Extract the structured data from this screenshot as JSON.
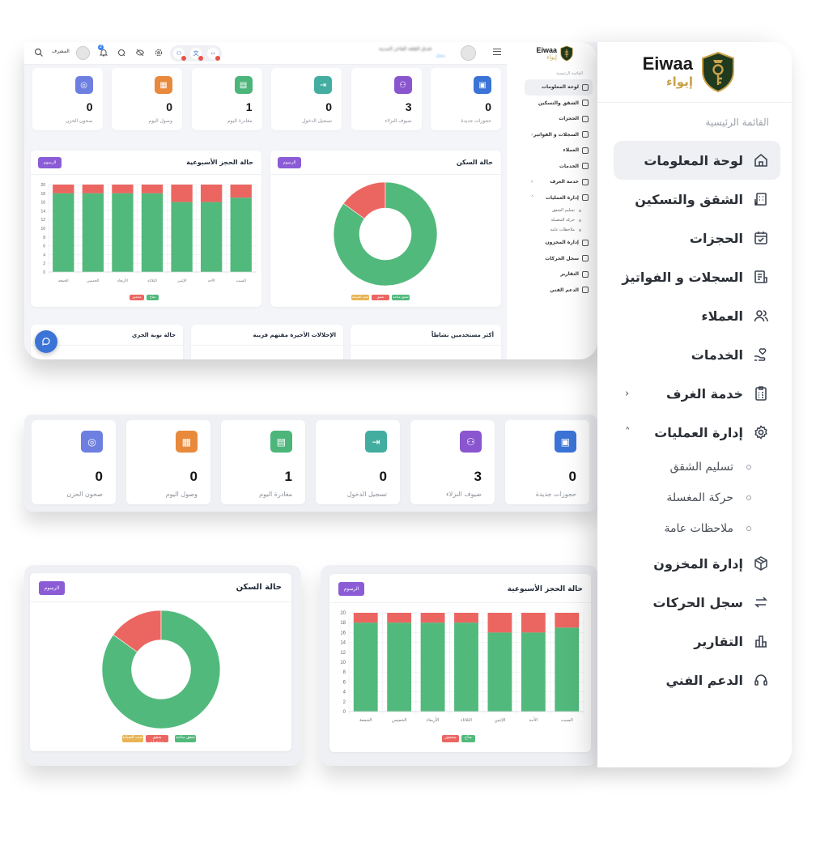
{
  "brand": {
    "name_en": "Eiwaa",
    "name_ar": "إيواء",
    "colors": {
      "shield": "#1f3a1f",
      "gold": "#c9a24a"
    }
  },
  "sidebar": {
    "section_title": "القائمة الرئيسية",
    "items": [
      {
        "label": "لوحة المعلومات",
        "icon": "home-icon",
        "active": true
      },
      {
        "label": "الشقق والتسكين",
        "icon": "building-icon"
      },
      {
        "label": "الحجزات",
        "icon": "calendar-check-icon"
      },
      {
        "label": "السجلات و الفواتير",
        "icon": "invoice-icon",
        "chevron": "‹"
      },
      {
        "label": "العملاء",
        "icon": "users-icon"
      },
      {
        "label": "الخدمات",
        "icon": "hand-heart-icon"
      },
      {
        "label": "خدمة الغرف",
        "icon": "clipboard-icon",
        "chevron": "‹"
      },
      {
        "label": "إدارة العمليات",
        "icon": "gear-icon",
        "chevron": "˄",
        "children": [
          "تسليم الشقق",
          "حركة المغسلة",
          "ملاحظات عامة"
        ]
      },
      {
        "label": "إدارة المخزون",
        "icon": "box-icon"
      },
      {
        "label": "سجل الحركات",
        "icon": "arrows-exchange-icon"
      },
      {
        "label": "التقارير",
        "icon": "bar-chart-icon"
      },
      {
        "label": "الدعم الفني",
        "icon": "headset-icon"
      }
    ]
  },
  "topbar": {
    "user_name": "المشرف",
    "hotel_title": "فندق القلعة الفاخر المدينة",
    "hotel_subtitle": "متصل",
    "notification_count": "2",
    "pill_icons": [
      "user-badge-icon",
      "translate-icon",
      "code-icon"
    ],
    "icons": [
      "search-icon",
      "refresh-icon",
      "eye-off-icon",
      "settings-icon",
      "bell-icon",
      "menu-icon"
    ]
  },
  "stats": [
    {
      "label": "حجوزات جديدة",
      "value": "0",
      "color": "#3b74d6",
      "icon": "calendar-plus-icon"
    },
    {
      "label": "ضيوف النزلاء",
      "value": "3",
      "color": "#8a56cf",
      "icon": "user-group-icon"
    },
    {
      "label": "تسجيل الدخول",
      "value": "0",
      "color": "#43ada0",
      "icon": "login-icon"
    },
    {
      "label": "مغادرة اليوم",
      "value": "1",
      "color": "#4bb57a",
      "icon": "calendar-out-icon"
    },
    {
      "label": "وصول اليوم",
      "value": "0",
      "color": "#e8893c",
      "icon": "calendar-in-icon"
    },
    {
      "label": "صحون الحزن",
      "value": "0",
      "color": "#6d7fe0",
      "icon": "check-circle-icon"
    }
  ],
  "cards": {
    "occupancy": {
      "title": "حالة السكن",
      "button": "الرسوم"
    },
    "weekly": {
      "title": "حالة الحجز الأسبوعية",
      "button": "الرسوم"
    },
    "bottom_row": [
      {
        "title": "أكثر مستخدمين نشاطاً"
      },
      {
        "title": "الإحلالات الأخيرة مقتهم قريبة"
      },
      {
        "title": "حالة نوبة الجري"
      }
    ]
  },
  "colors": {
    "green": "#52b97c",
    "red": "#ec6661",
    "amber": "#e8b455",
    "purple_button": "#8b5cd6",
    "fab_blue": "#3b74d6"
  },
  "chart_data": [
    {
      "type": "pie",
      "title": "حالة السكن",
      "labels": [
        "شقق متاحة",
        "شقق مشغولة",
        "تحت الصيانة"
      ],
      "values": [
        85,
        15,
        0
      ],
      "colors": [
        "#52b97c",
        "#ec6661",
        "#e8b455"
      ],
      "donut": true,
      "legend_position": "bottom"
    },
    {
      "type": "bar",
      "stacked": true,
      "title": "حالة الحجز الأسبوعية",
      "categories": [
        "السبت",
        "الأحد",
        "الإثنين",
        "الثلاثاء",
        "الأربعاء",
        "الخميس",
        "الجمعة"
      ],
      "series": [
        {
          "name": "متاح",
          "color": "#52b97c",
          "values": [
            17,
            16,
            16,
            18,
            18,
            18,
            18
          ]
        },
        {
          "name": "محجوز",
          "color": "#ec6661",
          "values": [
            3,
            4,
            4,
            2,
            2,
            2,
            2
          ]
        }
      ],
      "yticks": [
        0,
        2,
        4,
        6,
        8,
        10,
        12,
        14,
        16,
        18,
        20
      ],
      "ylim": [
        0,
        20
      ],
      "grid": true,
      "legend_position": "bottom",
      "direction": "rtl"
    }
  ]
}
